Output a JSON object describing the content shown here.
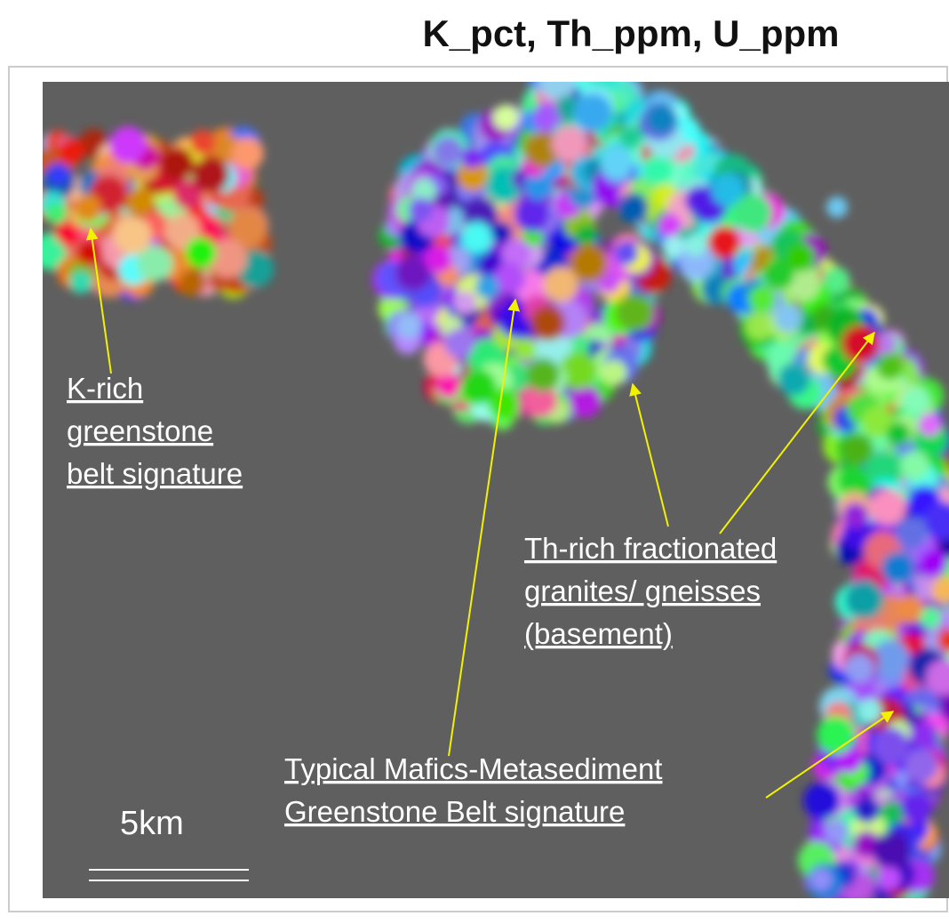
{
  "title": "K_pct, Th_ppm, U_ppm",
  "annotations": [
    {
      "lines": [
        "K-rich",
        "greenstone",
        "belt signature"
      ]
    },
    {
      "lines": [
        "Th-rich fractionated",
        "granites/ gneisses",
        "(basement)"
      ]
    },
    {
      "lines": [
        "Typical Mafics-Metasediment",
        "Greenstone Belt signature"
      ]
    }
  ],
  "scale_bar": {
    "label": "5km"
  }
}
